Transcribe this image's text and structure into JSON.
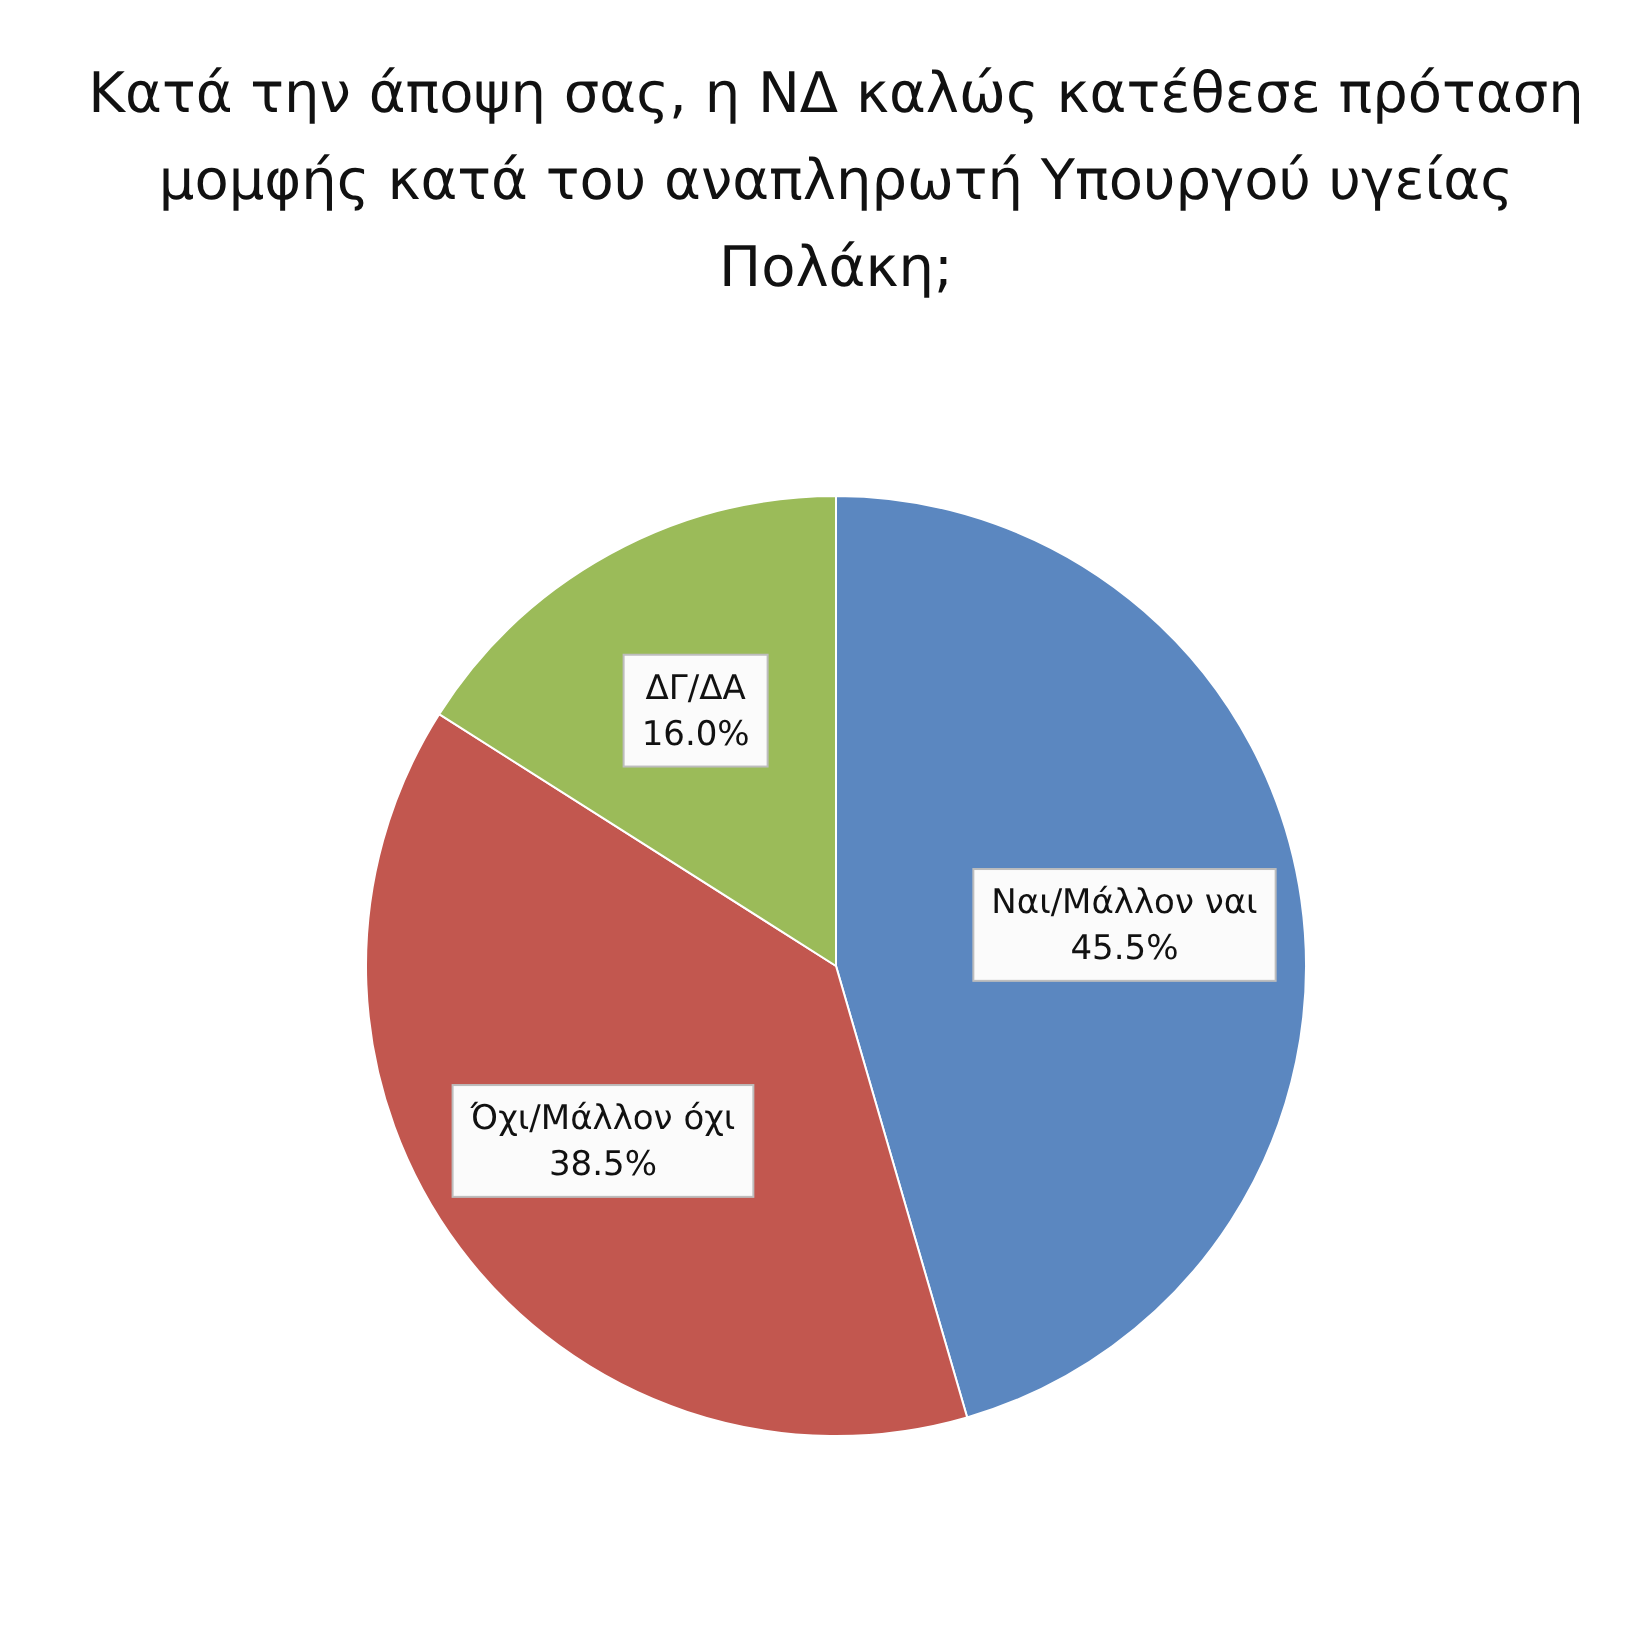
{
  "chart_data": {
    "type": "pie",
    "title": "Κατά την άποψη σας, η ΝΔ καλώς κατέθεσε πρόταση μομφής κατά του αναπληρωτή Υπουργού υγείας Πολάκη;",
    "categories": [
      "Ναι/Μάλλον ναι",
      "Όχι/Μάλλον όχι",
      "ΔΓ/ΔΑ"
    ],
    "values": [
      45.5,
      38.5,
      16.0
    ],
    "colors": [
      "#5b87c0",
      "#c2574f",
      "#9bbb59"
    ],
    "value_labels": [
      "45.5%",
      "38.5%",
      "16.0%"
    ]
  }
}
